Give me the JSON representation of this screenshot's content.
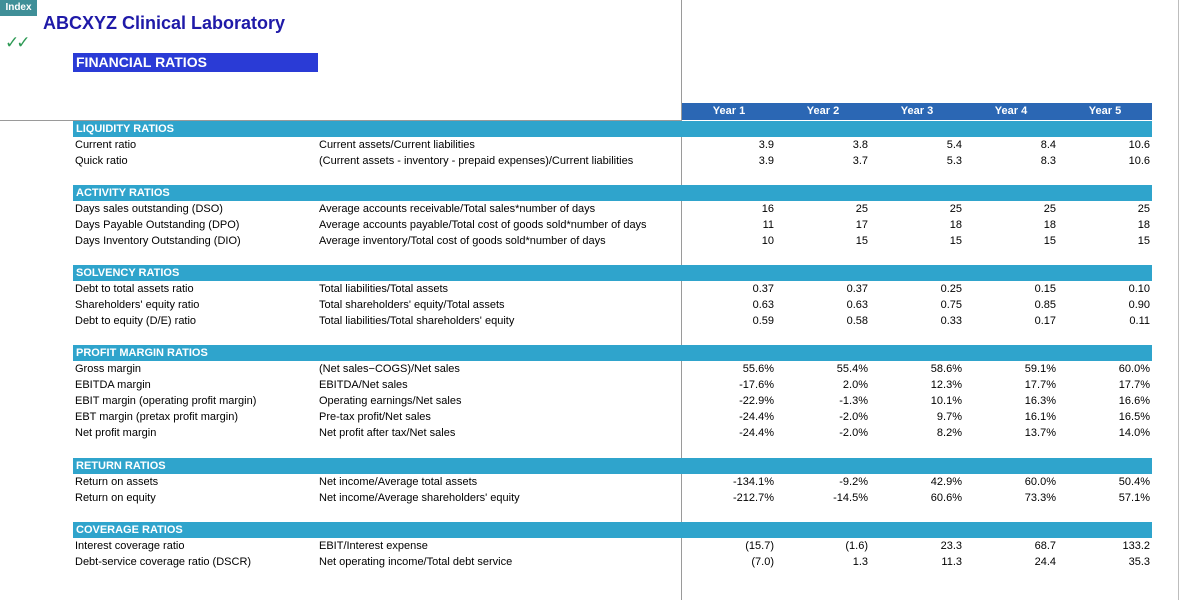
{
  "index_button": "Index",
  "company": "ABCXYZ Clinical Laboratory",
  "checkmark": "✓✓",
  "title": "FINANCIAL RATIOS",
  "years": [
    "Year 1",
    "Year 2",
    "Year 3",
    "Year 4",
    "Year 5"
  ],
  "sections": [
    {
      "title": "LIQUIDITY RATIOS",
      "rows": [
        {
          "label": "Current ratio",
          "formula": "Current assets/Current liabilities",
          "values": [
            "3.9",
            "3.8",
            "5.4",
            "8.4",
            "10.6"
          ]
        },
        {
          "label": "Quick ratio",
          "formula": "(Current assets - inventory - prepaid expenses)/Current liabilities",
          "values": [
            "3.9",
            "3.7",
            "5.3",
            "8.3",
            "10.6"
          ]
        }
      ]
    },
    {
      "title": "ACTIVITY RATIOS",
      "rows": [
        {
          "label": "Days sales outstanding (DSO)",
          "formula": "Average accounts receivable/Total sales*number of days",
          "values": [
            "16",
            "25",
            "25",
            "25",
            "25"
          ]
        },
        {
          "label": "Days Payable Outstanding (DPO)",
          "formula": "Average accounts payable/Total cost of goods sold*number of days",
          "values": [
            "11",
            "17",
            "18",
            "18",
            "18"
          ]
        },
        {
          "label": "Days Inventory Outstanding (DIO)",
          "formula": "Average inventory/Total cost of goods sold*number of days",
          "values": [
            "10",
            "15",
            "15",
            "15",
            "15"
          ]
        }
      ]
    },
    {
      "title": "SOLVENCY RATIOS",
      "rows": [
        {
          "label": "Debt to total assets ratio",
          "formula": "Total liabilities/Total assets",
          "values": [
            "0.37",
            "0.37",
            "0.25",
            "0.15",
            "0.10"
          ]
        },
        {
          "label": "Shareholders' equity ratio",
          "formula": "Total shareholders' equity/Total assets",
          "values": [
            "0.63",
            "0.63",
            "0.75",
            "0.85",
            "0.90"
          ]
        },
        {
          "label": "Debt to equity (D/E) ratio",
          "formula": "Total liabilities/Total shareholders' equity",
          "values": [
            "0.59",
            "0.58",
            "0.33",
            "0.17",
            "0.11"
          ]
        }
      ]
    },
    {
      "title": "PROFIT MARGIN RATIOS",
      "rows": [
        {
          "label": "Gross margin",
          "formula": "(Net sales−COGS)/Net sales",
          "values": [
            "55.6%",
            "55.4%",
            "58.6%",
            "59.1%",
            "60.0%"
          ]
        },
        {
          "label": "EBITDA margin",
          "formula": "EBITDA/Net sales",
          "values": [
            "-17.6%",
            "2.0%",
            "12.3%",
            "17.7%",
            "17.7%"
          ]
        },
        {
          "label": "EBIT margin (operating profit margin)",
          "formula": "Operating earnings/Net sales",
          "values": [
            "-22.9%",
            "-1.3%",
            "10.1%",
            "16.3%",
            "16.6%"
          ]
        },
        {
          "label": "EBT margin (pretax profit margin)",
          "formula": "Pre-tax profit/Net sales",
          "values": [
            "-24.4%",
            "-2.0%",
            "9.7%",
            "16.1%",
            "16.5%"
          ]
        },
        {
          "label": "Net profit margin",
          "formula": "Net profit after tax/Net sales",
          "values": [
            "-24.4%",
            "-2.0%",
            "8.2%",
            "13.7%",
            "14.0%"
          ]
        }
      ]
    },
    {
      "title": "RETURN RATIOS",
      "rows": [
        {
          "label": "Return on assets",
          "formula": "Net income/Average total assets",
          "values": [
            "-134.1%",
            "-9.2%",
            "42.9%",
            "60.0%",
            "50.4%"
          ]
        },
        {
          "label": "Return on equity",
          "formula": "Net income/Average shareholders' equity",
          "values": [
            "-212.7%",
            "-14.5%",
            "60.6%",
            "73.3%",
            "57.1%"
          ]
        }
      ]
    },
    {
      "title": "COVERAGE RATIOS",
      "rows": [
        {
          "label": "Interest coverage ratio",
          "formula": "EBIT/Interest expense",
          "values": [
            "(15.7)",
            "(1.6)",
            "23.3",
            "68.7",
            "133.2"
          ]
        },
        {
          "label": "Debt-service coverage ratio (DSCR)",
          "formula": "Net operating income/Total debt service",
          "values": [
            "(7.0)",
            "1.3",
            "11.3",
            "24.4",
            "35.3"
          ]
        }
      ]
    }
  ]
}
